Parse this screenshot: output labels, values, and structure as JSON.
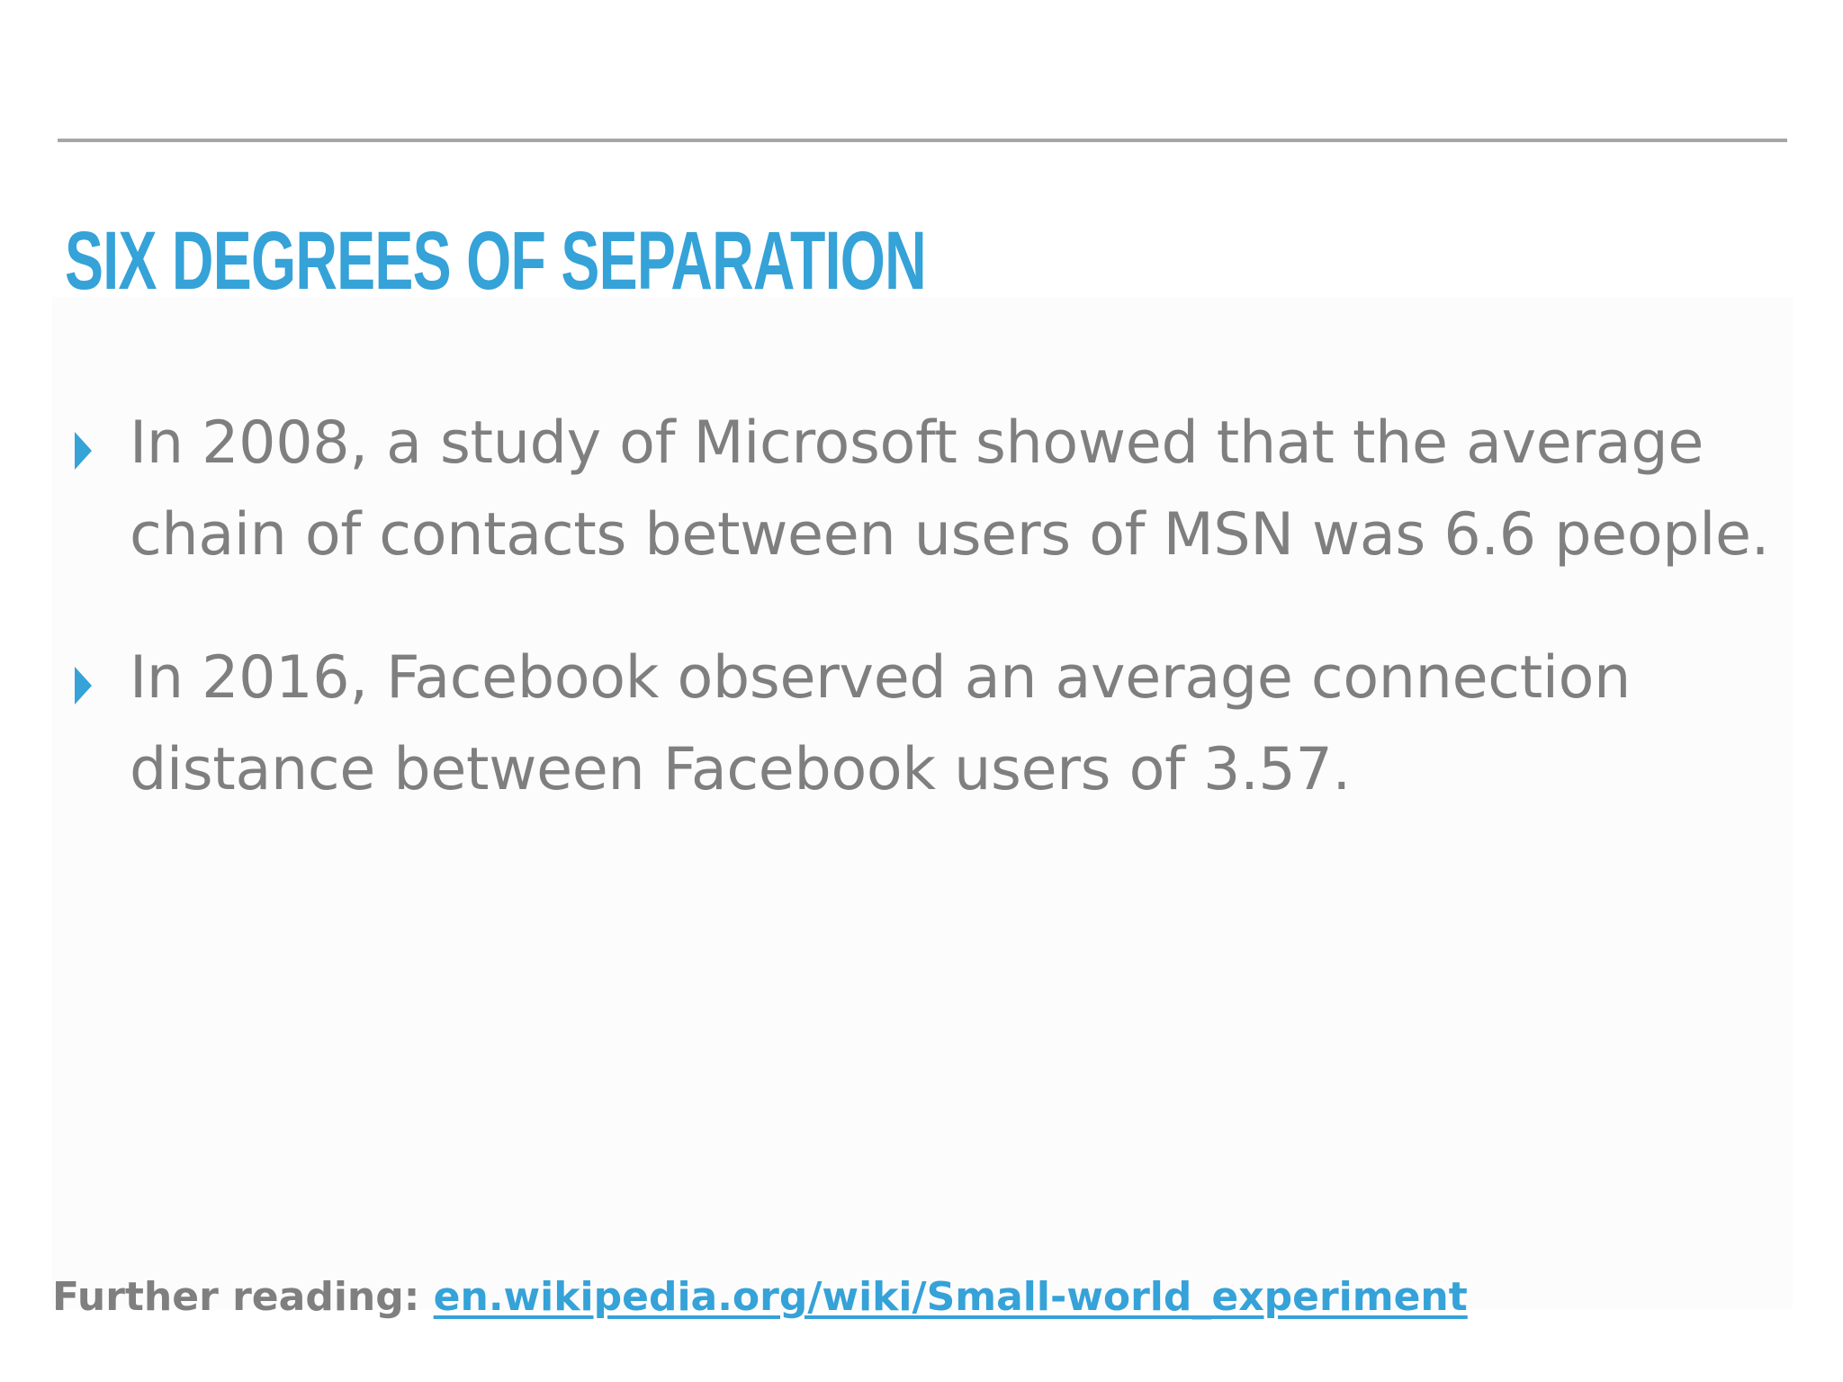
{
  "slide": {
    "title": "SIX DEGREES OF SEPARATION",
    "bullets": [
      "In 2008, a study of Microsoft showed that the average chain of contacts between users of MSN was 6.6 people.",
      "In 2016, Facebook observed an average connection distance between Facebook users of 3.57."
    ],
    "bullet_icon": "triangle-right-icon",
    "further_reading": {
      "label": "Further reading: ",
      "link_text": "en.wikipedia.org/wiki/Small-world_experiment"
    },
    "colors": {
      "accent": "#35a2d8",
      "body_text": "#7f7f7f",
      "rule": "#a6a6a6"
    }
  }
}
